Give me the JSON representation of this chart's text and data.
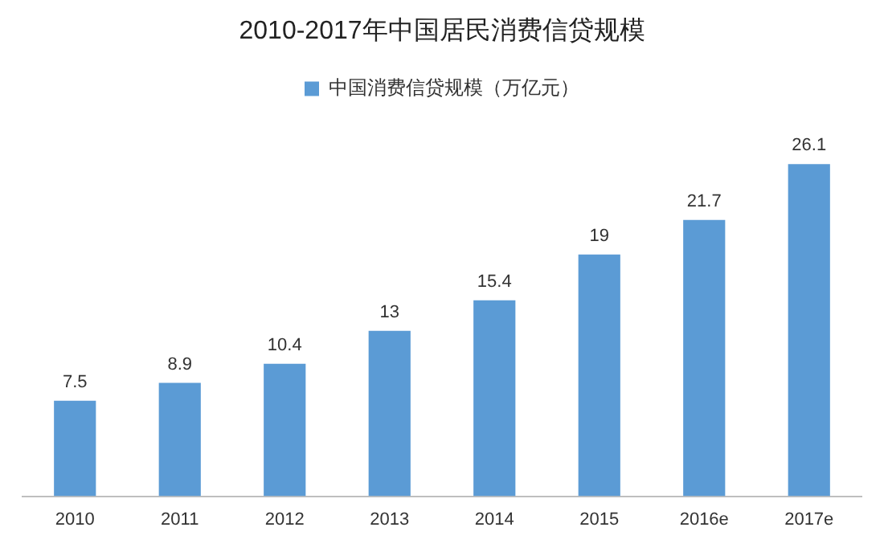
{
  "chart_data": {
    "type": "bar",
    "title": "2010-2017年中国居民消费信贷规模",
    "categories": [
      "2010",
      "2011",
      "2012",
      "2013",
      "2014",
      "2015",
      "2016e",
      "2017e"
    ],
    "series": [
      {
        "name": "中国消费信贷规模（万亿元）",
        "color": "#5b9bd5",
        "values": [
          7.5,
          8.9,
          10.4,
          13,
          15.4,
          19,
          21.7,
          26.1
        ]
      }
    ],
    "data_labels": true,
    "legend": "top",
    "grid": false
  }
}
